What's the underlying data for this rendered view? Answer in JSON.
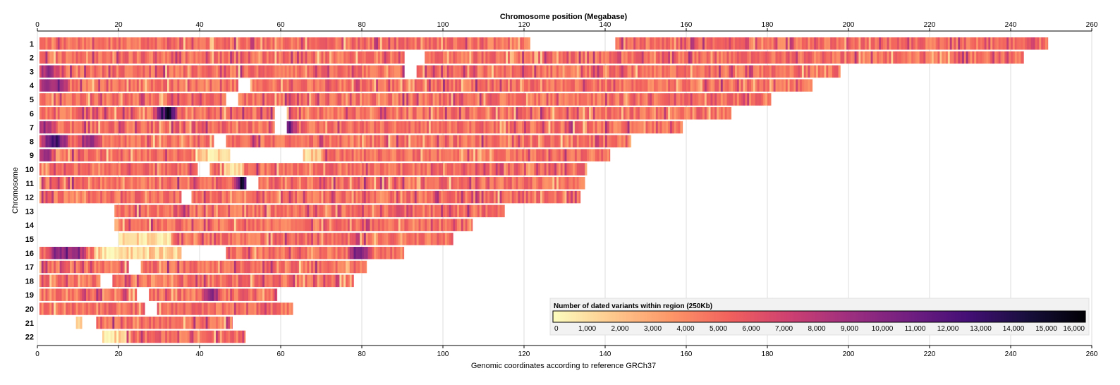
{
  "chart_data": {
    "type": "heatmap",
    "title": "Chromosome position (Megabase)",
    "xlabel": "Genomic coordinates according to reference GRCh37",
    "ylabel": "Chromosome",
    "xlim": [
      0,
      260
    ],
    "xticks": [
      0,
      20,
      40,
      60,
      80,
      100,
      120,
      140,
      160,
      180,
      200,
      220,
      240,
      260
    ],
    "grid": true,
    "bin_size_mb": 0.25,
    "chromosomes": [
      {
        "name": "1",
        "segments": [
          [
            0.5,
            121.5
          ],
          [
            142.5,
            249.2
          ]
        ],
        "hot": [
          [
            13,
            0.3
          ],
          [
            143,
            0.25
          ],
          [
            147,
            0.2
          ]
        ]
      },
      {
        "name": "2",
        "segments": [
          [
            0.5,
            90.5
          ],
          [
            95.5,
            243.2
          ]
        ],
        "hot": [
          [
            89,
            0.3
          ],
          [
            91,
            0.25
          ]
        ]
      },
      {
        "name": "3",
        "segments": [
          [
            0.5,
            90.5
          ],
          [
            93.5,
            198.0
          ]
        ],
        "hot": [
          [
            3,
            0.7
          ]
        ]
      },
      {
        "name": "4",
        "segments": [
          [
            0.5,
            49.5
          ],
          [
            52.5,
            191.1
          ]
        ],
        "hot": [
          [
            5,
            0.75
          ],
          [
            2,
            0.7
          ]
        ]
      },
      {
        "name": "5",
        "segments": [
          [
            0.5,
            46.5
          ],
          [
            49.5,
            180.9
          ]
        ],
        "hot": [
          [
            69,
            0.15
          ]
        ]
      },
      {
        "name": "6",
        "segments": [
          [
            0.5,
            58.5
          ],
          [
            61.5,
            171.1
          ]
        ],
        "hot": [
          [
            31,
            0.9
          ],
          [
            32.5,
            1.0
          ]
        ]
      },
      {
        "name": "7",
        "segments": [
          [
            0.5,
            58.5
          ],
          [
            61.5,
            159.1
          ]
        ],
        "hot": [
          [
            2,
            0.7
          ],
          [
            62,
            0.8
          ]
        ]
      },
      {
        "name": "8",
        "segments": [
          [
            0.5,
            43.5
          ],
          [
            46.5,
            146.4
          ]
        ],
        "hot": [
          [
            4,
            0.85
          ],
          [
            5,
            0.88
          ],
          [
            3,
            0.8
          ],
          [
            13,
            0.75
          ]
        ]
      },
      {
        "name": "9",
        "segments": [
          [
            0.5,
            47.5
          ],
          [
            65.5,
            141.2
          ]
        ],
        "hot": [
          [
            2,
            0.7
          ]
        ],
        "pale": [
          [
            39,
            47.5
          ],
          [
            65.5,
            70
          ]
        ]
      },
      {
        "name": "10",
        "segments": [
          [
            0.5,
            39.5
          ],
          [
            42.5,
            135.5
          ]
        ],
        "hot": [],
        "pale": [
          [
            46,
            51
          ]
        ]
      },
      {
        "name": "11",
        "segments": [
          [
            0.5,
            51.5
          ],
          [
            54.5,
            135.0
          ]
        ],
        "hot": [
          [
            50.5,
            1.0
          ]
        ]
      },
      {
        "name": "12",
        "segments": [
          [
            0.5,
            35.5
          ],
          [
            38.0,
            133.9
          ]
        ],
        "hot": []
      },
      {
        "name": "13",
        "segments": [
          [
            19.0,
            115.2
          ]
        ],
        "hot": []
      },
      {
        "name": "14",
        "segments": [
          [
            19.0,
            107.3
          ]
        ],
        "hot": [],
        "pale": [
          [
            19,
            20
          ]
        ]
      },
      {
        "name": "15",
        "segments": [
          [
            20.0,
            102.5
          ]
        ],
        "hot": [],
        "pale": [
          [
            20,
            33
          ]
        ]
      },
      {
        "name": "16",
        "segments": [
          [
            0.5,
            35.5
          ],
          [
            46.5,
            90.4
          ]
        ],
        "hot": [
          [
            7,
            0.8
          ],
          [
            5,
            0.75
          ],
          [
            10,
            0.7
          ],
          [
            79,
            0.8
          ],
          [
            80,
            0.75
          ]
        ],
        "pale": [
          [
            14,
            35.5
          ]
        ]
      },
      {
        "name": "17",
        "segments": [
          [
            0.5,
            22.5
          ],
          [
            25.5,
            81.2
          ]
        ],
        "hot": []
      },
      {
        "name": "18",
        "segments": [
          [
            0.5,
            15.5
          ],
          [
            18.5,
            78.0
          ]
        ],
        "hot": []
      },
      {
        "name": "19",
        "segments": [
          [
            0.5,
            24.5
          ],
          [
            27.5,
            59.1
          ]
        ],
        "hot": [
          [
            43,
            0.7
          ]
        ]
      },
      {
        "name": "20",
        "segments": [
          [
            0.5,
            26.5
          ],
          [
            29.5,
            63.0
          ]
        ],
        "hot": []
      },
      {
        "name": "21",
        "segments": [
          [
            9.5,
            11.0
          ],
          [
            14.5,
            48.1
          ]
        ],
        "hot": [],
        "pale": [
          [
            9.5,
            11.0
          ]
        ]
      },
      {
        "name": "22",
        "segments": [
          [
            16.0,
            51.3
          ]
        ],
        "hot": [],
        "pale": [
          [
            16,
            22
          ]
        ]
      }
    ],
    "legend": {
      "title": "Number of dated variants within region (250Kb)",
      "min": 0,
      "max": 16000,
      "tick_values": [
        0,
        1000,
        2000,
        3000,
        4000,
        5000,
        6000,
        7000,
        8000,
        9000,
        10000,
        11000,
        12000,
        13000,
        14000,
        15000,
        16000
      ],
      "tick_labels": [
        "0",
        "1,000",
        "2,000",
        "3,000",
        "4,000",
        "5,000",
        "6,000",
        "7,000",
        "8,000",
        "9,000",
        "10,000",
        "11,000",
        "12,000",
        "13,000",
        "14,000",
        "15,000",
        "16,000"
      ],
      "colormap": "magma_r",
      "colors": [
        "#fcfdbf",
        "#fec98d",
        "#fd9668",
        "#f1605d",
        "#cd4071",
        "#9e2f7f",
        "#721f81",
        "#440f76",
        "#180f3d",
        "#000004"
      ]
    }
  }
}
